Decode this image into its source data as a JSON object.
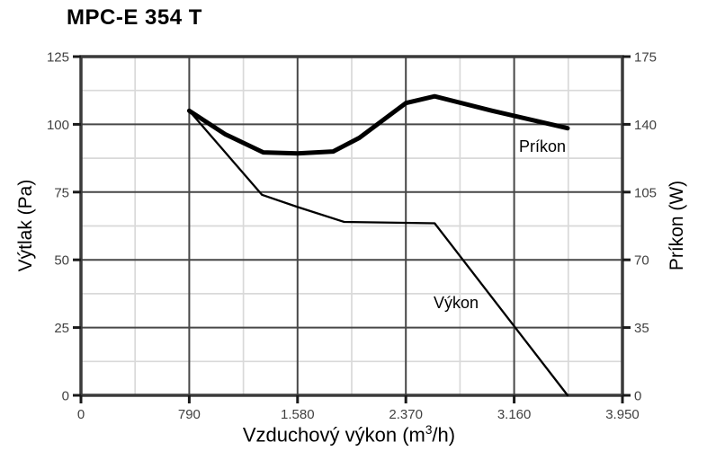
{
  "page_title": "MPC-E 354 T",
  "colors": {
    "background": "#ffffff",
    "plot_border": "#3a3a3a",
    "grid_major": "#474747",
    "grid_minor": "#d9d9d9",
    "tick_mark": "#1a1a1a",
    "tick_label": "#414141",
    "series_line": "#000000",
    "text": "#000000"
  },
  "chart_data": {
    "type": "line",
    "title": "MPC-E 354 T",
    "xlabel": "Vzduchový výkon (m³/h)",
    "xlabel_main": "Vzduchový výkon (m",
    "xlabel_sup": "3",
    "xlabel_end": "/h)",
    "ylabel_left": "Výtlak (Pa)",
    "ylabel_right": "Príkon (W)",
    "xlim": [
      0,
      3950
    ],
    "ylim_left": [
      0,
      125
    ],
    "ylim_right": [
      0,
      175
    ],
    "x_tick_labels": [
      "0",
      "790",
      "1.580",
      "2.370",
      "3.160",
      "3.950"
    ],
    "x_tick_values": [
      0,
      790,
      1580,
      2370,
      3160,
      3950
    ],
    "y_tick_labels_left": [
      "0",
      "25",
      "50",
      "75",
      "100",
      "125"
    ],
    "y_tick_values_left": [
      0,
      25,
      50,
      75,
      100,
      125
    ],
    "y_tick_labels_right": [
      "0",
      "35",
      "70",
      "105",
      "140",
      "175"
    ],
    "y_tick_values_right": [
      0,
      35,
      70,
      105,
      140,
      175
    ],
    "grid": {
      "major": true,
      "minor": true,
      "minor_position": "halfway between majors"
    },
    "legend_position": "inline labels inside plot",
    "series": [
      {
        "name": "Príkon",
        "axis": "right",
        "unit": "W",
        "line_width": "thick",
        "points": [
          [
            790,
            147
          ],
          [
            1050,
            135
          ],
          [
            1330,
            125.5
          ],
          [
            1580,
            125
          ],
          [
            1840,
            126
          ],
          [
            2030,
            133
          ],
          [
            2370,
            151
          ],
          [
            2580,
            154.5
          ],
          [
            3000,
            147
          ],
          [
            3550,
            138
          ]
        ]
      },
      {
        "name": "Výkon",
        "axis": "left",
        "unit": "Pa",
        "line_width": "thin",
        "points": [
          [
            790,
            105
          ],
          [
            1320,
            74
          ],
          [
            1580,
            69.5
          ],
          [
            1920,
            64
          ],
          [
            2580,
            63.5
          ],
          [
            3550,
            0
          ]
        ]
      }
    ]
  }
}
